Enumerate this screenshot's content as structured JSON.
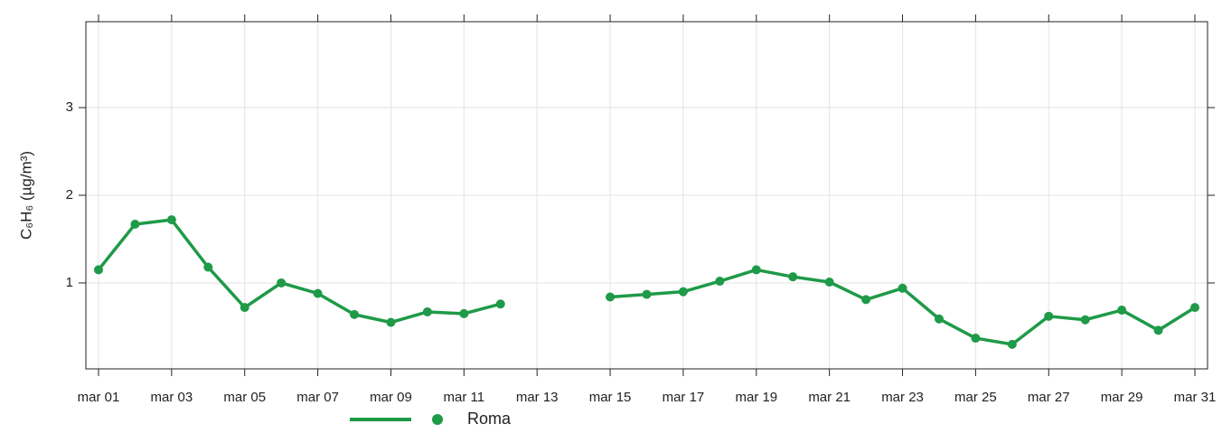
{
  "chart_data": {
    "type": "line",
    "ylabel": "C₆H₆ (µg/m³)",
    "categories": [
      "mar 01",
      null,
      "mar 03",
      null,
      "mar 05",
      null,
      "mar 07",
      null,
      "mar 09",
      null,
      "mar 11",
      null,
      "mar 13",
      null,
      "mar 15",
      null,
      "mar 17",
      null,
      "mar 19",
      null,
      "mar 21",
      null,
      "mar 23",
      null,
      "mar 25",
      null,
      "mar 27",
      null,
      "mar 29",
      null,
      "mar 31"
    ],
    "series": [
      {
        "name": "Roma",
        "color": "#1f9a48",
        "values": [
          1.15,
          1.67,
          1.72,
          1.18,
          0.72,
          1.0,
          0.88,
          0.64,
          0.55,
          0.67,
          0.65,
          0.76,
          null,
          null,
          0.84,
          0.87,
          0.9,
          1.02,
          1.15,
          1.07,
          1.01,
          0.81,
          0.94,
          0.59,
          0.37,
          0.3,
          0.62,
          0.58,
          0.69,
          0.46,
          0.72
        ]
      }
    ],
    "ylim": [
      0.02,
      3.98
    ],
    "yticks": [
      1,
      2,
      3
    ],
    "grid": true,
    "legend": "bottom"
  }
}
